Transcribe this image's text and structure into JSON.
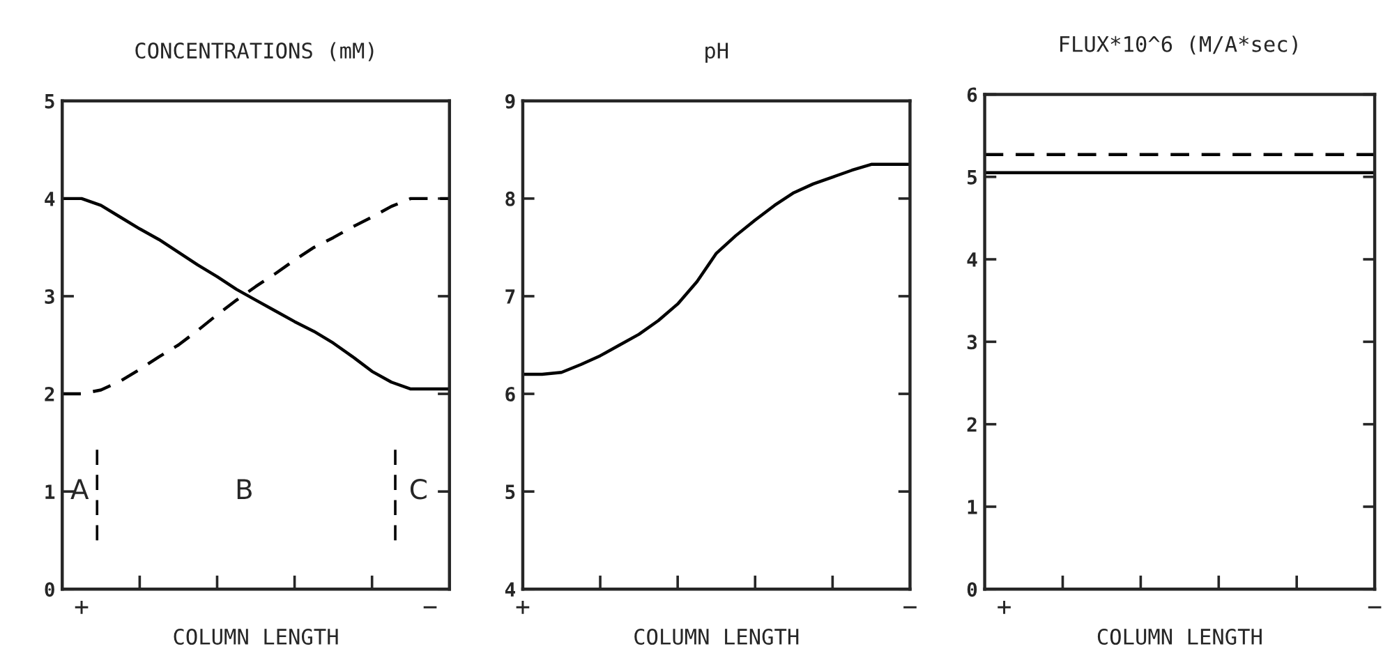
{
  "chart_data": [
    {
      "type": "line",
      "title": "CONCENTRATIONS (mM)",
      "xlabel": "COLUMN LENGTH",
      "ylim": [
        0,
        5
      ],
      "yticks": [
        0,
        1,
        2,
        3,
        4,
        5
      ],
      "categories": [
        null,
        "+",
        null,
        null,
        null,
        null,
        null,
        null,
        null,
        null,
        null,
        null,
        null,
        null,
        null,
        null,
        null,
        null,
        null,
        "−",
        null
      ],
      "grid": false,
      "series": [
        {
          "color": "#000000",
          "line_style": "solid",
          "values": [
            4,
            4,
            3.93,
            3.81,
            3.69,
            3.58,
            3.45,
            3.32,
            3.2,
            3.07,
            2.96,
            2.85,
            2.74,
            2.64,
            2.52,
            2.38,
            2.23,
            2.12,
            2.05,
            2.05,
            2.05
          ]
        },
        {
          "color": "#000000",
          "line_style": "dashed",
          "values": [
            2,
            2,
            2.04,
            2.13,
            2.25,
            2.38,
            2.5,
            2.65,
            2.81,
            2.96,
            3.1,
            3.23,
            3.37,
            3.5,
            3.6,
            3.71,
            3.81,
            3.92,
            4,
            4,
            4
          ]
        }
      ],
      "annotations": [
        "A",
        "B",
        "C"
      ]
    },
    {
      "type": "line",
      "title": "pH",
      "xlabel": "COLUMN LENGTH",
      "ylim": [
        4,
        9
      ],
      "yticks": [
        4,
        5,
        6,
        7,
        8,
        9
      ],
      "categories": [
        "+",
        null,
        null,
        null,
        null,
        null,
        null,
        null,
        null,
        null,
        null,
        null,
        null,
        null,
        null,
        null,
        null,
        null,
        null,
        null,
        "−"
      ],
      "grid": false,
      "series": [
        {
          "color": "#000000",
          "line_style": "solid",
          "values": [
            6.2,
            6.2,
            6.22,
            6.3,
            6.39,
            6.5,
            6.61,
            6.75,
            6.92,
            7.15,
            7.44,
            7.62,
            7.78,
            7.93,
            8.06,
            8.15,
            8.22,
            8.29,
            8.35,
            8.35,
            8.35
          ]
        }
      ]
    },
    {
      "type": "line",
      "title": "FLUX*10^6 (M/A*sec)",
      "xlabel": "COLUMN LENGTH",
      "ylim": [
        0,
        6
      ],
      "yticks": [
        0,
        1,
        2,
        3,
        4,
        5,
        6
      ],
      "categories": [
        null,
        "+",
        null,
        null,
        null,
        null,
        null,
        null,
        null,
        null,
        null,
        null,
        null,
        null,
        null,
        null,
        null,
        null,
        null,
        null,
        "−"
      ],
      "grid": false,
      "series": [
        {
          "color": "#000000",
          "line_style": "solid",
          "values": [
            5.05,
            5.05,
            5.05,
            5.05,
            5.05,
            5.05,
            5.05,
            5.05,
            5.05,
            5.05,
            5.05,
            5.05,
            5.05,
            5.05,
            5.05,
            5.05,
            5.05,
            5.05,
            5.05,
            5.05,
            5.05
          ]
        },
        {
          "color": "#000000",
          "line_style": "dashed",
          "values": [
            5.27,
            5.27,
            5.27,
            5.27,
            5.27,
            5.27,
            5.27,
            5.27,
            5.27,
            5.27,
            5.27,
            5.27,
            5.27,
            5.27,
            5.27,
            5.27,
            5.27,
            5.27,
            5.27,
            5.27,
            5.27
          ]
        }
      ]
    }
  ]
}
